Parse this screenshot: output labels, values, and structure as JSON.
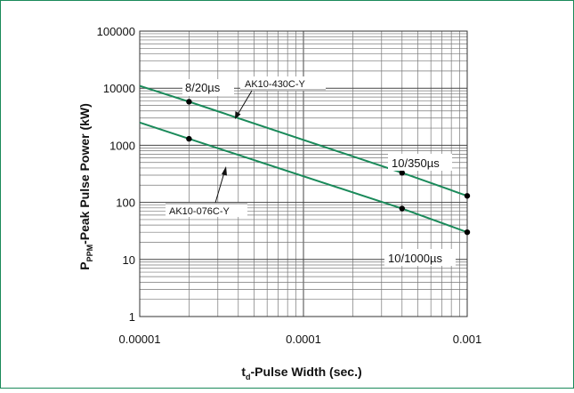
{
  "chart_data": {
    "type": "line",
    "title": "",
    "xlabel": {
      "main": "t",
      "sub": "d",
      "rest": "-Pulse Width (sec.)"
    },
    "ylabel": {
      "main": "P",
      "sub": "PPM",
      "rest": "-Peak Pulse Power (kW)"
    },
    "x_scale": "log",
    "y_scale": "log",
    "xlim": [
      1e-05,
      0.001
    ],
    "ylim": [
      1,
      100000
    ],
    "grid": true,
    "x_tick_labels": [
      "0.00001",
      "0.0001",
      "0.001"
    ],
    "y_tick_labels": [
      "100000",
      "10000",
      "1000",
      "100",
      "10",
      "1"
    ],
    "series": [
      {
        "name": "AK10-430C-Y",
        "color": "#1a8a5a",
        "x": [
          1e-05,
          2e-05,
          0.0004,
          0.001
        ],
        "y": [
          11000,
          5800,
          330,
          130
        ],
        "markers": [
          {
            "x": 2e-05,
            "y": 5800
          },
          {
            "x": 0.0004,
            "y": 330
          },
          {
            "x": 0.001,
            "y": 130
          }
        ]
      },
      {
        "name": "AK10-076C-Y",
        "color": "#1a8a5a",
        "x": [
          1e-05,
          2e-05,
          0.0004,
          0.001
        ],
        "y": [
          2500,
          1300,
          78,
          30
        ],
        "markers": [
          {
            "x": 2e-05,
            "y": 1300
          },
          {
            "x": 0.0004,
            "y": 78
          },
          {
            "x": 0.001,
            "y": 30
          }
        ]
      }
    ],
    "annotations": [
      {
        "text": "8/20µs"
      },
      {
        "text": "10/350µs"
      },
      {
        "text": "10/1000µs"
      },
      {
        "text": "AK10-430C-Y"
      },
      {
        "text": "AK10-076C-Y"
      }
    ]
  }
}
